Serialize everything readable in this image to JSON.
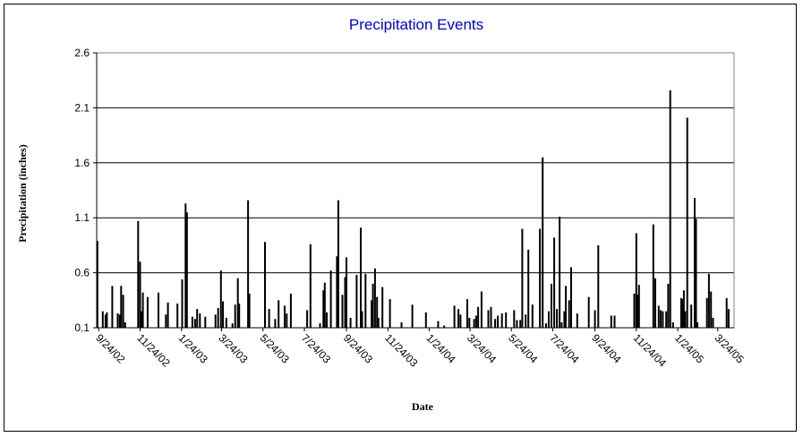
{
  "chart_data": {
    "type": "bar",
    "title": "Precipitation Events",
    "xlabel": "Date",
    "ylabel": "Precipitation (inches)",
    "ylim": [
      0.1,
      2.6
    ],
    "yticks": [
      "0.1",
      "0.6",
      "1.1",
      "1.6",
      "2.1",
      "2.6"
    ],
    "grid": true,
    "legend": "none",
    "xticks": [
      {
        "label": "9/24/02",
        "date": "2002-09-24"
      },
      {
        "label": "11/24/02",
        "date": "2002-11-24"
      },
      {
        "label": "1/24/03",
        "date": "2003-01-24"
      },
      {
        "label": "3/24/03",
        "date": "2003-03-24"
      },
      {
        "label": "5/24/03",
        "date": "2003-05-24"
      },
      {
        "label": "7/24/03",
        "date": "2003-07-24"
      },
      {
        "label": "9/24/03",
        "date": "2003-09-24"
      },
      {
        "label": "11/24/03",
        "date": "2003-11-24"
      },
      {
        "label": "1/24/04",
        "date": "2004-01-24"
      },
      {
        "label": "3/24/04",
        "date": "2004-03-24"
      },
      {
        "label": "5/24/04",
        "date": "2004-05-24"
      },
      {
        "label": "7/24/04",
        "date": "2004-07-24"
      },
      {
        "label": "9/24/04",
        "date": "2004-09-24"
      },
      {
        "label": "11/24/04",
        "date": "2004-11-24"
      },
      {
        "label": "1/24/05",
        "date": "2005-01-24"
      },
      {
        "label": "3/24/05",
        "date": "2005-03-24"
      }
    ],
    "x_end": "2005-04-17",
    "series": [
      {
        "color": "#000000",
        "points": [
          [
            "2002-09-22",
            0.89
          ],
          [
            "2002-09-30",
            0.25
          ],
          [
            "2002-10-04",
            0.22
          ],
          [
            "2002-10-06",
            0.24
          ],
          [
            "2002-10-14",
            0.48
          ],
          [
            "2002-10-22",
            0.23
          ],
          [
            "2002-10-25",
            0.22
          ],
          [
            "2002-10-27",
            0.48
          ],
          [
            "2002-10-30",
            0.4
          ],
          [
            "2002-11-02",
            0.15
          ],
          [
            "2002-11-21",
            1.07
          ],
          [
            "2002-11-24",
            0.7
          ],
          [
            "2002-11-26",
            0.25
          ],
          [
            "2002-11-28",
            0.42
          ],
          [
            "2002-12-05",
            0.38
          ],
          [
            "2002-12-21",
            0.42
          ],
          [
            "2003-01-01",
            0.22
          ],
          [
            "2003-01-04",
            0.33
          ],
          [
            "2003-01-18",
            0.32
          ],
          [
            "2003-01-25",
            0.54
          ],
          [
            "2003-01-30",
            1.23
          ],
          [
            "2003-02-01",
            1.15
          ],
          [
            "2003-02-09",
            0.2
          ],
          [
            "2003-02-13",
            0.18
          ],
          [
            "2003-02-16",
            0.27
          ],
          [
            "2003-02-20",
            0.23
          ],
          [
            "2003-02-28",
            0.2
          ],
          [
            "2003-03-15",
            0.22
          ],
          [
            "2003-03-19",
            0.28
          ],
          [
            "2003-03-23",
            0.62
          ],
          [
            "2003-03-26",
            0.34
          ],
          [
            "2003-03-31",
            0.19
          ],
          [
            "2003-04-09",
            0.14
          ],
          [
            "2003-04-13",
            0.31
          ],
          [
            "2003-04-17",
            0.55
          ],
          [
            "2003-04-19",
            0.32
          ],
          [
            "2003-05-02",
            1.26
          ],
          [
            "2003-05-04",
            0.41
          ],
          [
            "2003-05-27",
            0.88
          ],
          [
            "2003-06-02",
            0.27
          ],
          [
            "2003-06-11",
            0.18
          ],
          [
            "2003-06-16",
            0.35
          ],
          [
            "2003-06-25",
            0.3
          ],
          [
            "2003-06-28",
            0.23
          ],
          [
            "2003-07-04",
            0.41
          ],
          [
            "2003-07-28",
            0.26
          ],
          [
            "2003-08-02",
            0.86
          ],
          [
            "2003-08-16",
            0.14
          ],
          [
            "2003-08-21",
            0.44
          ],
          [
            "2003-08-23",
            0.51
          ],
          [
            "2003-08-26",
            0.24
          ],
          [
            "2003-09-01",
            0.62
          ],
          [
            "2003-09-10",
            0.75
          ],
          [
            "2003-09-12",
            1.26
          ],
          [
            "2003-09-18",
            0.4
          ],
          [
            "2003-09-22",
            0.56
          ],
          [
            "2003-09-24",
            0.74
          ],
          [
            "2003-09-30",
            0.19
          ],
          [
            "2003-10-09",
            0.58
          ],
          [
            "2003-10-15",
            1.01
          ],
          [
            "2003-10-17",
            0.25
          ],
          [
            "2003-10-22",
            0.59
          ],
          [
            "2003-10-31",
            0.35
          ],
          [
            "2003-11-02",
            0.5
          ],
          [
            "2003-11-05",
            0.64
          ],
          [
            "2003-11-08",
            0.38
          ],
          [
            "2003-11-10",
            0.19
          ],
          [
            "2003-11-16",
            0.47
          ],
          [
            "2003-11-27",
            0.36
          ],
          [
            "2003-12-14",
            0.15
          ],
          [
            "2003-12-30",
            0.31
          ],
          [
            "2004-01-19",
            0.24
          ],
          [
            "2004-02-06",
            0.16
          ],
          [
            "2004-02-15",
            0.12
          ],
          [
            "2004-03-01",
            0.3
          ],
          [
            "2004-03-07",
            0.27
          ],
          [
            "2004-03-10",
            0.22
          ],
          [
            "2004-03-20",
            0.36
          ],
          [
            "2004-03-23",
            0.19
          ],
          [
            "2004-03-30",
            0.18
          ],
          [
            "2004-04-02",
            0.21
          ],
          [
            "2004-04-05",
            0.29
          ],
          [
            "2004-04-10",
            0.43
          ],
          [
            "2004-04-20",
            0.26
          ],
          [
            "2004-04-24",
            0.29
          ],
          [
            "2004-04-30",
            0.18
          ],
          [
            "2004-05-04",
            0.21
          ],
          [
            "2004-05-10",
            0.23
          ],
          [
            "2004-05-16",
            0.24
          ],
          [
            "2004-05-28",
            0.26
          ],
          [
            "2004-06-01",
            0.17
          ],
          [
            "2004-06-06",
            0.17
          ],
          [
            "2004-06-09",
            1.0
          ],
          [
            "2004-06-14",
            0.22
          ],
          [
            "2004-06-18",
            0.81
          ],
          [
            "2004-06-24",
            0.31
          ],
          [
            "2004-07-05",
            1.0
          ],
          [
            "2004-07-09",
            1.65
          ],
          [
            "2004-07-14",
            0.14
          ],
          [
            "2004-07-18",
            0.25
          ],
          [
            "2004-07-22",
            0.5
          ],
          [
            "2004-07-26",
            0.92
          ],
          [
            "2004-07-30",
            0.27
          ],
          [
            "2004-08-03",
            1.11
          ],
          [
            "2004-08-06",
            0.15
          ],
          [
            "2004-08-10",
            0.25
          ],
          [
            "2004-08-12",
            0.48
          ],
          [
            "2004-08-17",
            0.35
          ],
          [
            "2004-08-20",
            0.65
          ],
          [
            "2004-08-29",
            0.23
          ],
          [
            "2004-09-15",
            0.38
          ],
          [
            "2004-09-24",
            0.26
          ],
          [
            "2004-09-29",
            0.85
          ],
          [
            "2004-10-18",
            0.21
          ],
          [
            "2004-10-23",
            0.21
          ],
          [
            "2004-11-21",
            0.41
          ],
          [
            "2004-11-24",
            0.96
          ],
          [
            "2004-11-26",
            0.4
          ],
          [
            "2004-11-28",
            0.49
          ],
          [
            "2004-12-19",
            1.04
          ],
          [
            "2004-12-22",
            0.55
          ],
          [
            "2004-12-27",
            0.3
          ],
          [
            "2004-12-30",
            0.26
          ],
          [
            "2005-01-02",
            0.25
          ],
          [
            "2005-01-07",
            0.25
          ],
          [
            "2005-01-10",
            0.5
          ],
          [
            "2005-01-13",
            2.26
          ],
          [
            "2005-01-17",
            0.15
          ],
          [
            "2005-01-29",
            0.37
          ],
          [
            "2005-01-31",
            0.36
          ],
          [
            "2005-02-02",
            0.44
          ],
          [
            "2005-02-04",
            0.25
          ],
          [
            "2005-02-07",
            2.01
          ],
          [
            "2005-02-13",
            0.31
          ],
          [
            "2005-02-18",
            1.28
          ],
          [
            "2005-02-20",
            1.09
          ],
          [
            "2005-02-22",
            0.15
          ],
          [
            "2005-03-08",
            0.37
          ],
          [
            "2005-03-11",
            0.59
          ],
          [
            "2005-03-14",
            0.43
          ],
          [
            "2005-03-17",
            0.19
          ],
          [
            "2005-04-06",
            0.37
          ],
          [
            "2005-04-09",
            0.27
          ]
        ]
      }
    ]
  }
}
